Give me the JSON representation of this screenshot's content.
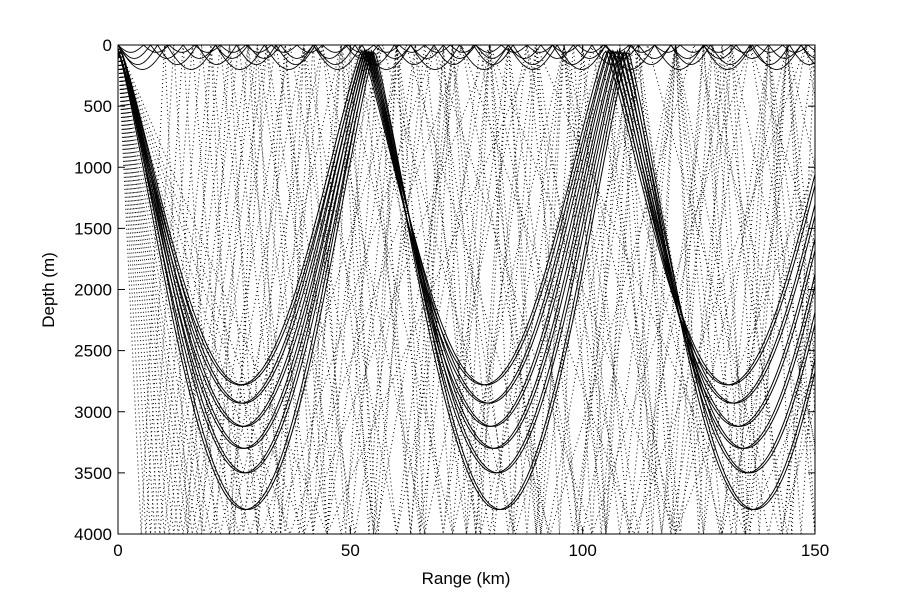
{
  "chart_data": {
    "type": "line",
    "title": "",
    "xlabel": "Range (km)",
    "ylabel": "Depth (m)",
    "xlim": [
      0,
      150
    ],
    "ylim": [
      0,
      4000
    ],
    "y_inverted": true,
    "grid": false,
    "x_ticks": [
      0,
      50,
      100,
      150
    ],
    "y_ticks": [
      0,
      500,
      1000,
      1500,
      2000,
      2500,
      3000,
      3500,
      4000
    ],
    "x_tick_labels": [
      "0",
      "50",
      "100",
      "150"
    ],
    "y_tick_labels": [
      "0",
      "500",
      "1000",
      "1500",
      "2000",
      "2500",
      "3000",
      "3500",
      "4000"
    ],
    "line_color": "#000000",
    "refracted_rays": {
      "style": "solid",
      "cycle_length_km": 53.5,
      "turning_depths_m": [
        2780,
        2930,
        3120,
        3300,
        3500,
        3800
      ]
    },
    "surface_rays": {
      "style": "solid",
      "arch_lengths_km": [
        5.5,
        7,
        8.5,
        10.5
      ],
      "max_depths_m": [
        60,
        110,
        160,
        200
      ]
    },
    "bottom_bounce_rays": {
      "style": "dotted",
      "source_range_km": 0,
      "source_depth_m": 0,
      "horizontal_periods_km": [
        10,
        12,
        14,
        16,
        18,
        20,
        22,
        24,
        26,
        28,
        30,
        32,
        34,
        37,
        40,
        44,
        48,
        52,
        57,
        62,
        68,
        74,
        80,
        90
      ]
    }
  }
}
